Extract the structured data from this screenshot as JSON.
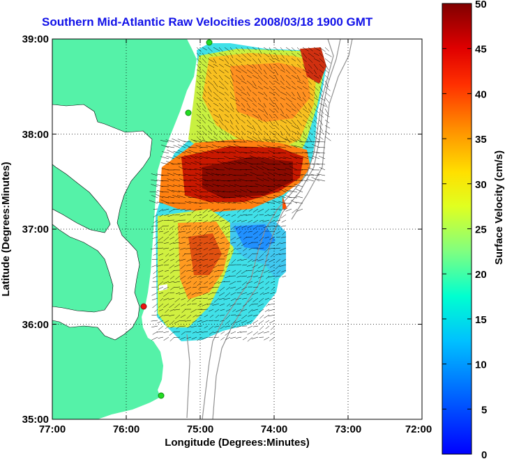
{
  "title": "Southern Mid-Atlantic Raw Velocities 2008/03/18 1900 GMT",
  "xlabel": "Longitude (Degrees:Minutes)",
  "ylabel": "Latitude (Degrees:Minutes)",
  "colorbar_label": "Surface Velocity (cm/s)",
  "x_ticks": [
    "77:00",
    "76:00",
    "75:00",
    "74:00",
    "73:00",
    "72:00"
  ],
  "y_ticks": [
    "39:00",
    "38:00",
    "37:00",
    "36:00",
    "35:00"
  ],
  "colorbar_ticks": [
    "50",
    "45",
    "40",
    "35",
    "30",
    "25",
    "20",
    "15",
    "10",
    "5",
    "0"
  ],
  "colors": {
    "title": "#1010e8",
    "land": "#55f2a8",
    "station_green": "#22dd22",
    "station_red": "#ee1111"
  },
  "chart_data": {
    "type": "heatmap",
    "title": "Southern Mid-Atlantic Raw Velocities 2008/03/18 1900 GMT",
    "xlabel": "Longitude (Degrees:Minutes)",
    "ylabel": "Latitude (Degrees:Minutes)",
    "xlim": [
      -77,
      -72
    ],
    "ylim": [
      35,
      39
    ],
    "colorbar": {
      "label": "Surface Velocity (cm/s)",
      "range": [
        0,
        50
      ],
      "colormap": "jet"
    },
    "grid": true,
    "stations": [
      {
        "lon": -74.88,
        "lat": 38.98,
        "color": "green"
      },
      {
        "lon": -75.16,
        "lat": 38.22,
        "color": "green"
      },
      {
        "lon": -75.75,
        "lat": 36.18,
        "color": "red"
      },
      {
        "lon": -75.53,
        "lat": 35.25,
        "color": "green"
      }
    ]
  }
}
